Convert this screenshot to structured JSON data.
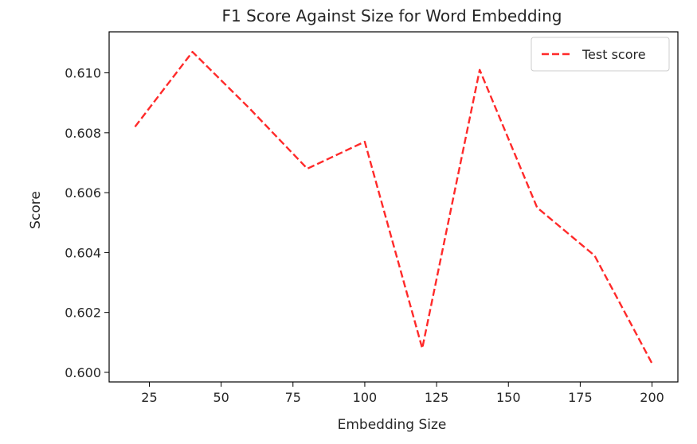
{
  "chart_data": {
    "type": "line",
    "title": "F1 Score Against Size for Word Embedding",
    "xlabel": "Embedding Size",
    "ylabel": "Score",
    "x": [
      20,
      40,
      60,
      80,
      100,
      120,
      140,
      160,
      180,
      200
    ],
    "series": [
      {
        "name": "Test score",
        "values": [
          0.6082,
          0.6107,
          0.6088,
          0.6068,
          0.6077,
          0.6008,
          0.6101,
          0.6055,
          0.6039,
          0.6003
        ],
        "color": "#ff2a2a",
        "line_style": "dashed"
      }
    ],
    "xlim": [
      11,
      209
    ],
    "ylim": [
      0.59968,
      0.61137
    ],
    "x_ticks": [
      25,
      50,
      75,
      100,
      125,
      150,
      175,
      200
    ],
    "y_ticks": [
      0.6,
      0.602,
      0.604,
      0.606,
      0.608,
      0.61
    ],
    "x_tick_labels": [
      "25",
      "50",
      "75",
      "100",
      "125",
      "150",
      "175",
      "200"
    ],
    "y_tick_labels": [
      "0.600",
      "0.602",
      "0.604",
      "0.606",
      "0.608",
      "0.610"
    ],
    "grid": false,
    "legend_position": "top-right"
  }
}
